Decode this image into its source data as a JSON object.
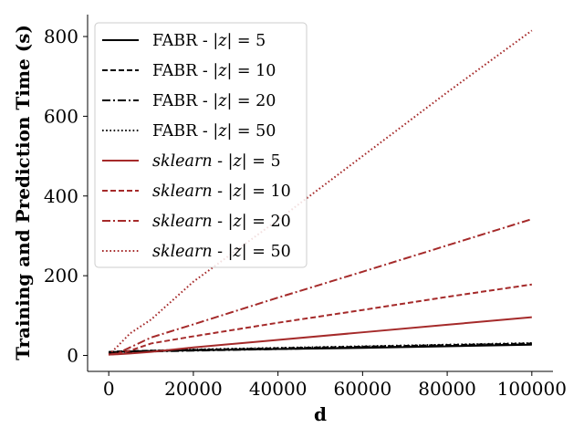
{
  "chart_data": {
    "type": "line",
    "xlabel": "d",
    "ylabel": "Training and Prediction Time (s)",
    "xlim": [
      -5000,
      105000
    ],
    "ylim": [
      -40,
      855
    ],
    "xticks": [
      0,
      20000,
      40000,
      60000,
      80000,
      100000
    ],
    "xtick_labels": [
      "0",
      "20000",
      "40000",
      "60000",
      "80000",
      "100000"
    ],
    "yticks": [
      0,
      200,
      400,
      600,
      800
    ],
    "ytick_labels": [
      "0",
      "200",
      "400",
      "600",
      "800"
    ],
    "grid": false,
    "legend_position": "top-left",
    "x": [
      0,
      2000,
      5000,
      10000,
      20000,
      40000,
      60000,
      80000,
      100000
    ],
    "series": [
      {
        "name": "FABR - |z| = 5",
        "label_prefix": "FABR",
        "label_z": "5",
        "color": "#000000",
        "dash": "solid",
        "values": [
          8,
          9,
          10,
          11,
          13,
          16,
          19,
          23,
          27
        ]
      },
      {
        "name": "FABR - |z| = 10",
        "label_prefix": "FABR",
        "label_z": "10",
        "color": "#000000",
        "dash": "dashed",
        "values": [
          9,
          10,
          11,
          12,
          14,
          18,
          22,
          26,
          30
        ]
      },
      {
        "name": "FABR - |z| = 20",
        "label_prefix": "FABR",
        "label_z": "20",
        "color": "#000000",
        "dash": "dashdot",
        "values": [
          6,
          8,
          9,
          10,
          12,
          16,
          20,
          24,
          28
        ]
      },
      {
        "name": "FABR - |z| = 50",
        "label_prefix": "FABR",
        "label_z": "50",
        "color": "#000000",
        "dash": "dotted",
        "values": [
          6,
          8,
          10,
          12,
          15,
          19,
          23,
          27,
          31
        ]
      },
      {
        "name": "sklearn - |z| = 5",
        "label_prefix": "sklearn",
        "label_z": "5",
        "color": "#a52a2a",
        "dash": "solid",
        "values": [
          2,
          3,
          5,
          9,
          20,
          39,
          58,
          77,
          96
        ]
      },
      {
        "name": "sklearn - |z| = 10",
        "label_prefix": "sklearn",
        "label_z": "10",
        "color": "#a52a2a",
        "dash": "dashed",
        "values": [
          2,
          4,
          12,
          30,
          48,
          82,
          114,
          147,
          178
        ]
      },
      {
        "name": "sklearn - |z| = 20",
        "label_prefix": "sklearn",
        "label_z": "20",
        "color": "#a52a2a",
        "dash": "dashdot",
        "values": [
          2,
          5,
          20,
          45,
          78,
          145,
          210,
          276,
          342
        ]
      },
      {
        "name": "sklearn - |z| = 50",
        "label_prefix": "sklearn",
        "label_z": "50",
        "color": "#a52a2a",
        "dash": "dotted",
        "values": [
          2,
          22,
          55,
          90,
          185,
          340,
          500,
          660,
          815
        ]
      }
    ]
  }
}
